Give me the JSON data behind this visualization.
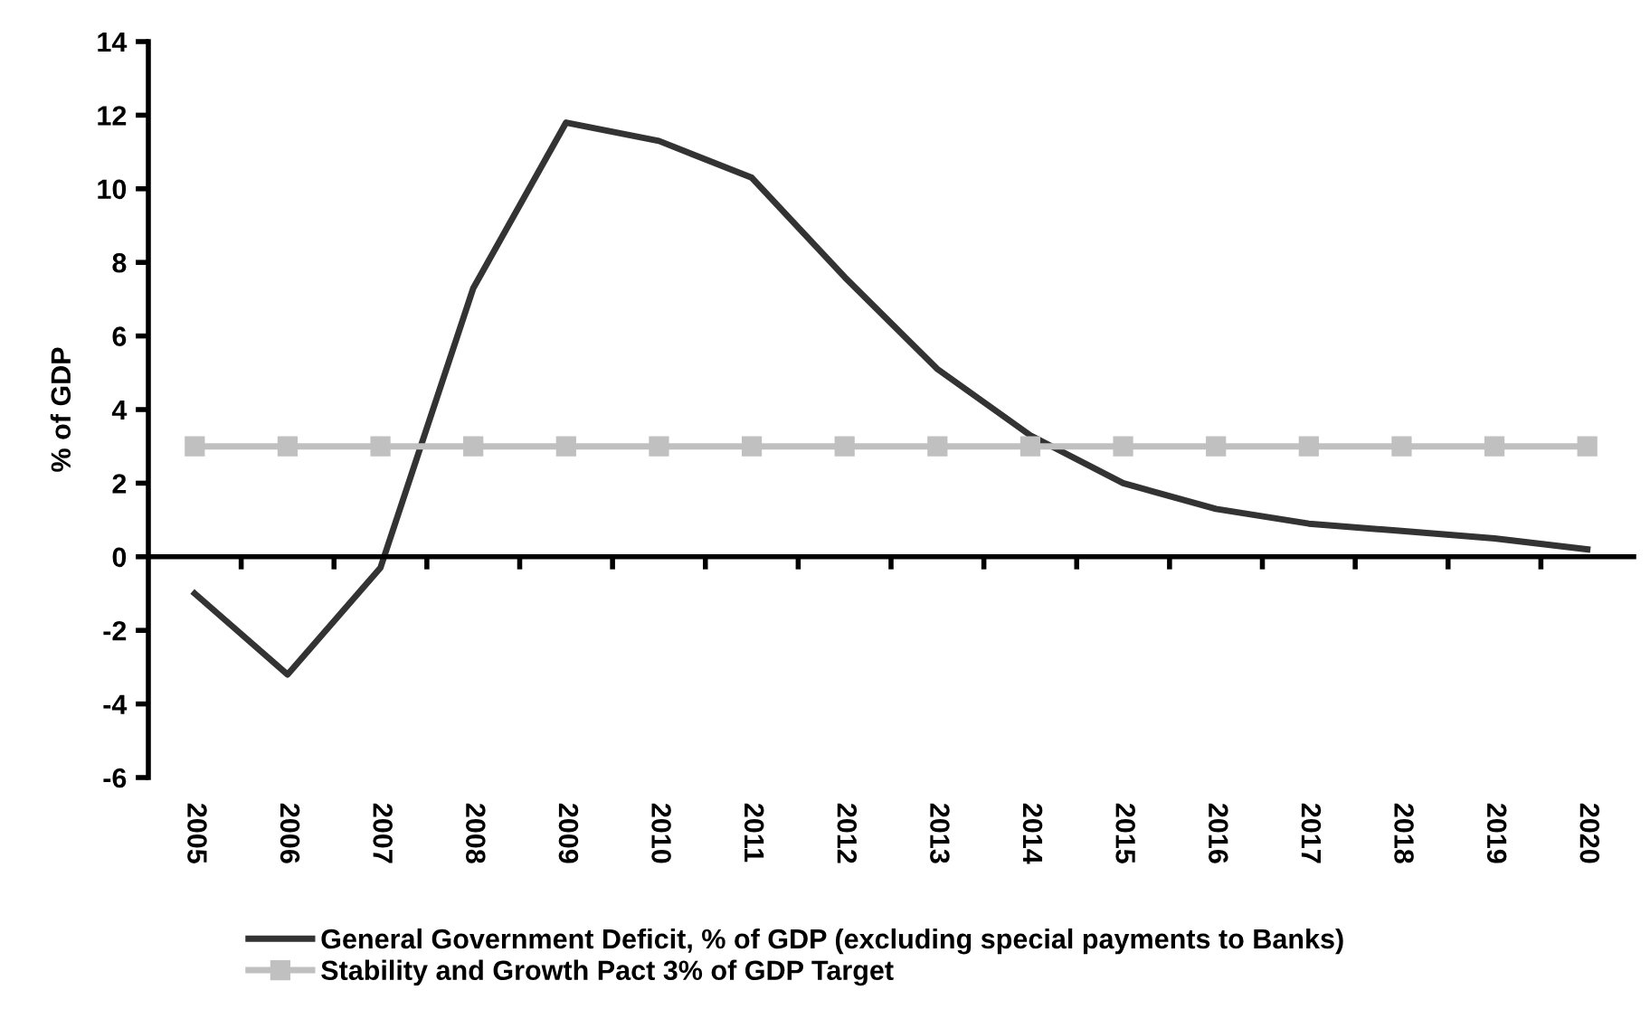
{
  "chart_data": {
    "type": "line",
    "ylabel": "% of GDP",
    "categories": [
      "2005",
      "2006",
      "2007",
      "2008",
      "2009",
      "2010",
      "2011",
      "2012",
      "2013",
      "2014",
      "2015",
      "2016",
      "2017",
      "2018",
      "2019",
      "2020"
    ],
    "series": [
      {
        "name": "General Government Deficit, % of GDP (excluding special payments to Banks)",
        "color": "#333333",
        "marker": "none",
        "values": [
          -1.0,
          -3.2,
          -0.3,
          7.3,
          11.8,
          11.3,
          10.3,
          7.6,
          5.1,
          3.3,
          2.0,
          1.3,
          0.9,
          0.7,
          0.5,
          0.2
        ]
      },
      {
        "name": "Stability and Growth Pact 3% of GDP Target",
        "color": "#c0c0c0",
        "marker": "square",
        "values": [
          3,
          3,
          3,
          3,
          3,
          3,
          3,
          3,
          3,
          3,
          3,
          3,
          3,
          3,
          3,
          3
        ]
      }
    ],
    "ylim": [
      -6,
      14
    ],
    "yticks": [
      -6,
      -4,
      -2,
      0,
      2,
      4,
      6,
      8,
      10,
      12,
      14
    ],
    "legend": "bottom"
  }
}
